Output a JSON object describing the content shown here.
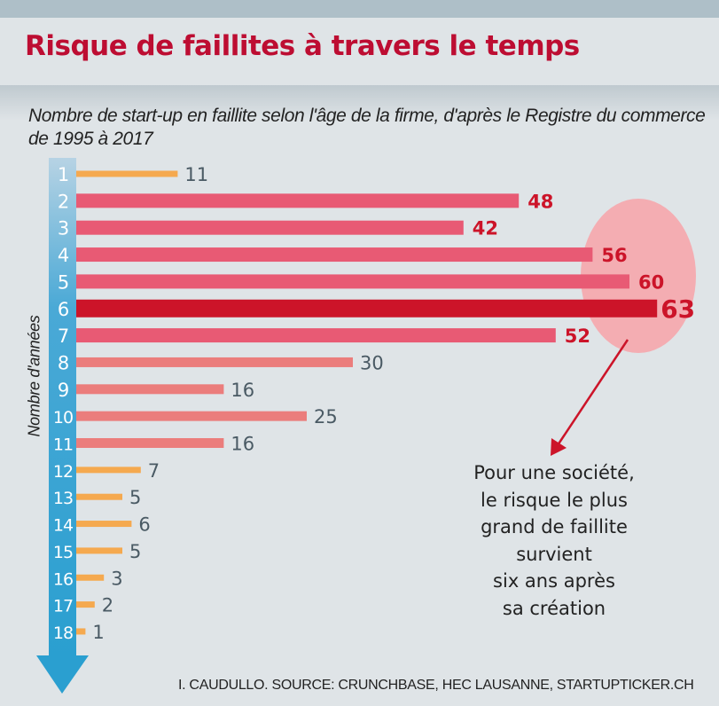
{
  "header": {
    "title": "Risque de faillites à travers le temps",
    "subtitle": "Nombre de start-up en faillite selon l'âge de la firme, d'après le Registre du commerce de 1995 à 2017"
  },
  "colors": {
    "title": "#bd0d32",
    "background": "#dfe4e7",
    "top_stripe": "#aebfc8",
    "bar_orange": "#f5a94f",
    "bar_pink": "#e85a74",
    "bar_highlight": "#cc1429",
    "bar_salmon": "#eb7d7c",
    "label_red": "#cc1429",
    "label_gray": "#4a5a64",
    "axis_arrow": "#2fa3d1",
    "highlight_ellipse": "#f4adb2",
    "annotation_arrow": "#cc1429"
  },
  "chart_data": {
    "type": "bar",
    "orientation": "horizontal",
    "title": "Risque de faillites à travers le temps",
    "subtitle": "Nombre de start-up en faillite selon l'âge de la firme, d'après le Registre du commerce de 1995 à 2017",
    "xlabel": "",
    "ylabel": "Nombre d'années",
    "categories": [
      "1",
      "2",
      "3",
      "4",
      "5",
      "6",
      "7",
      "8",
      "9",
      "10",
      "11",
      "12",
      "13",
      "14",
      "15",
      "16",
      "17",
      "18"
    ],
    "values": [
      11,
      48,
      42,
      56,
      60,
      63,
      52,
      30,
      16,
      25,
      16,
      7,
      5,
      6,
      5,
      3,
      2,
      1
    ],
    "bar_groups": [
      "orange",
      "pink",
      "pink",
      "pink",
      "pink",
      "highlight",
      "pink",
      "salmon",
      "salmon",
      "salmon",
      "salmon",
      "orange",
      "orange",
      "orange",
      "orange",
      "orange",
      "orange",
      "orange"
    ],
    "highlighted_category": "6",
    "grid": false,
    "legend": "none"
  },
  "annotation": {
    "lines": [
      "Pour une société,",
      "le risque le plus",
      "grand de faillite",
      "survient",
      "six ans après",
      "sa création"
    ]
  },
  "credit": "I. CAUDULLO. SOURCE: CRUNCHBASE,  HEC  LAUSANNE, STARTUPTICKER.CH"
}
